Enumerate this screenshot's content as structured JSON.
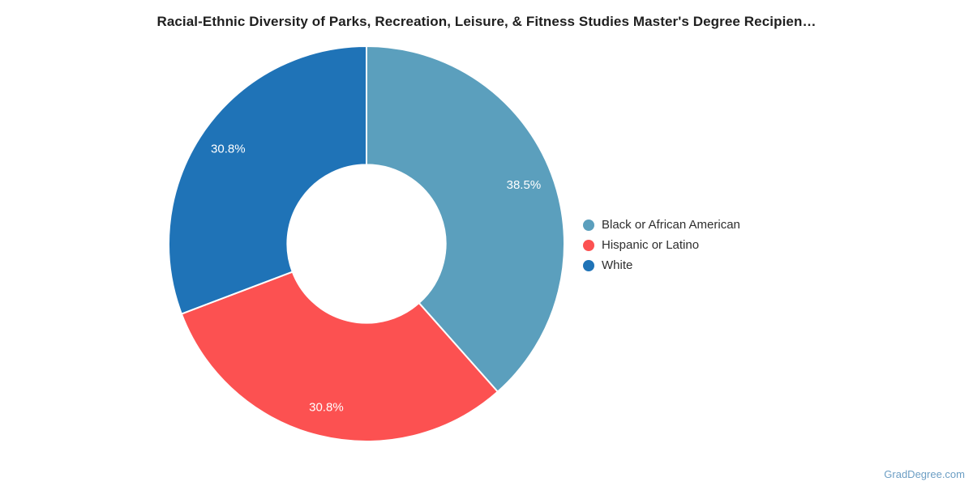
{
  "chart_data": {
    "type": "pie",
    "subtype": "donut",
    "title": "Racial-Ethnic Diversity of Parks, Recreation, Leisure, & Fitness Studies Master's Degree Recipien…",
    "inner_radius_ratio": 0.4,
    "start_angle_deg": 0,
    "direction": "clockwise",
    "legend_position": "right",
    "grid": false,
    "slice_label_color": "#FFFFFF",
    "slice_border_color": "#FFFFFF",
    "slices": [
      {
        "label": "Black or African American",
        "value": 38.5,
        "display": "38.5%",
        "color": "#5B9FBD"
      },
      {
        "label": "Hispanic or Latino",
        "value": 30.8,
        "display": "30.8%",
        "color": "#FC5151"
      },
      {
        "label": "White",
        "value": 30.8,
        "display": "30.8%",
        "color": "#1F73B7"
      }
    ]
  },
  "watermark": {
    "text": "GradDegree.com",
    "color": "#6C9EC4"
  }
}
